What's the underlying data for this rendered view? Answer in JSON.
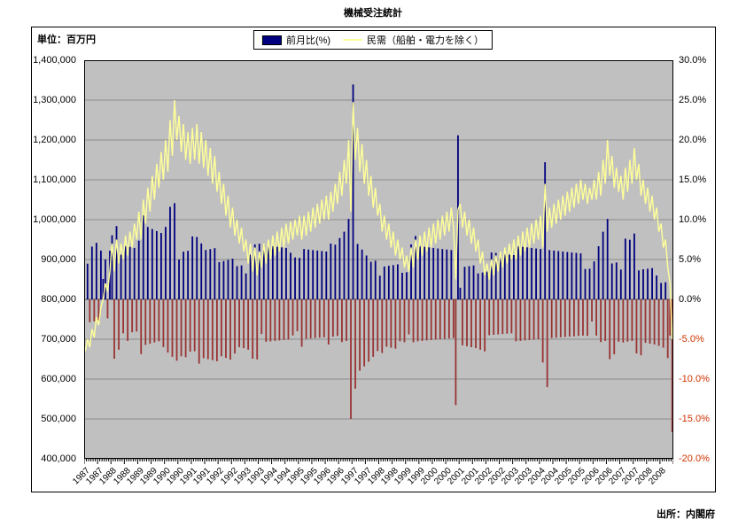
{
  "page": {
    "title": "機械受注統計",
    "unit_label": "単位：百万円",
    "source": "出所：内閣府"
  },
  "legend": {
    "items": [
      {
        "label": "前月比(%)",
        "type": "bar",
        "color": "#000080"
      },
      {
        "label": "民需（船舶・電力を除く）",
        "type": "line",
        "color": "#ffff99"
      }
    ]
  },
  "chart_data": {
    "type": "bar+line combo (monthly time series)",
    "title": "機械受注統計",
    "grid": true,
    "plot_bg": "#c0c0c0",
    "left_axis": {
      "label": "単位：百万円",
      "min": 400000,
      "max": 1400000,
      "step": 100000,
      "tick_labels": [
        "1,400,000",
        "1,300,000",
        "1,200,000",
        "1,100,000",
        "1,000,000",
        "900,000",
        "800,000",
        "700,000",
        "600,000",
        "500,000",
        "400,000"
      ]
    },
    "right_axis": {
      "min": -20,
      "max": 30,
      "step": 5,
      "tick_labels": [
        "30.0%",
        "25.0%",
        "20.0%",
        "15.0%",
        "10.0%",
        "5.0%",
        "0.0%",
        "-5.0%",
        "-10.0%",
        "-15.0%",
        "-20.0%"
      ],
      "negative_label_color": "#cc3300"
    },
    "x_axis": {
      "start_year": 1987,
      "start_month": 1,
      "months": 264,
      "tick_every_months": 6,
      "tick_labels": [
        "1987",
        "1987",
        "1988",
        "1988",
        "1989",
        "1989",
        "1990",
        "1990",
        "1991",
        "1991",
        "1992",
        "1992",
        "1993",
        "1993",
        "1994",
        "1994",
        "1995",
        "1995",
        "1996",
        "1996",
        "1997",
        "1997",
        "1998",
        "1998",
        "1999",
        "1999",
        "2000",
        "2000",
        "2001",
        "2001",
        "2002",
        "2002",
        "2003",
        "2003",
        "2004",
        "2004",
        "2005",
        "2005",
        "2006",
        "2006",
        "2007",
        "2007",
        "2008",
        "2008"
      ]
    },
    "series": [
      {
        "name": "民需（船舶・電力を除く）",
        "axis": "left",
        "type": "line",
        "color": "#ffff99",
        "unit": "百万円",
        "values": [
          670000,
          700000,
          680000,
          725000,
          705000,
          755000,
          735000,
          780000,
          800000,
          840000,
          820000,
          870000,
          940000,
          870000,
          950000,
          890000,
          940000,
          900000,
          960000,
          910000,
          970000,
          930000,
          990000,
          950000,
          1020000,
          950000,
          1050000,
          990000,
          1080000,
          1020000,
          1110000,
          1050000,
          1140000,
          1080000,
          1170000,
          1100000,
          1200000,
          1120000,
          1250000,
          1160000,
          1300000,
          1200000,
          1260000,
          1170000,
          1240000,
          1150000,
          1220000,
          1140000,
          1230000,
          1150000,
          1240000,
          1140000,
          1220000,
          1130000,
          1200000,
          1110000,
          1180000,
          1090000,
          1160000,
          1070000,
          1120000,
          1040000,
          1090000,
          1010000,
          1060000,
          980000,
          1030000,
          960000,
          1000000,
          940000,
          980000,
          920000,
          950000,
          890000,
          940000,
          870000,
          930000,
          860000,
          920000,
          880000,
          940000,
          890000,
          950000,
          900000,
          960000,
          910000,
          970000,
          920000,
          980000,
          930000,
          990000,
          940000,
          995000,
          950000,
          1000000,
          960000,
          1010000,
          950000,
          1010000,
          960000,
          1020000,
          970000,
          1030000,
          980000,
          1040000,
          990000,
          1050000,
          1000000,
          1060000,
          1000000,
          1070000,
          1020000,
          1090000,
          1040000,
          1120000,
          1060000,
          1150000,
          1090000,
          1200000,
          1020000,
          1295000,
          1150000,
          1230000,
          1120000,
          1190000,
          1090000,
          1150000,
          1060000,
          1110000,
          1030000,
          1080000,
          1010000,
          1040000,
          970000,
          1010000,
          950000,
          990000,
          930000,
          970000,
          910000,
          950000,
          900000,
          930000,
          880000,
          910000,
          870000,
          930000,
          880000,
          950000,
          900000,
          960000,
          910000,
          970000,
          920000,
          980000,
          930000,
          990000,
          940000,
          1000000,
          950000,
          1010000,
          960000,
          1020000,
          970000,
          1030000,
          980000,
          850000,
          1025000,
          1040000,
          980000,
          1020000,
          960000,
          1000000,
          940000,
          980000,
          920000,
          950000,
          890000,
          920000,
          860000,
          890000,
          850000,
          900000,
          860000,
          910000,
          870000,
          920000,
          880000,
          930000,
          890000,
          940000,
          900000,
          950000,
          900000,
          960000,
          910000,
          970000,
          920000,
          980000,
          930000,
          990000,
          940000,
          1000000,
          950000,
          1010000,
          930000,
          1090000,
          970000,
          1030000,
          980000,
          1040000,
          990000,
          1050000,
          1000000,
          1060000,
          1010000,
          1070000,
          1020000,
          1080000,
          1030000,
          1090000,
          1040000,
          1100000,
          1050000,
          1090000,
          1040000,
          1080000,
          1050000,
          1100000,
          1050000,
          1120000,
          1060000,
          1150000,
          1090000,
          1200000,
          1110000,
          1160000,
          1080000,
          1130000,
          1070000,
          1110000,
          1050000,
          1130000,
          1070000,
          1150000,
          1090000,
          1180000,
          1100000,
          1140000,
          1060000,
          1100000,
          1040000,
          1080000,
          1020000,
          1060000,
          1000000,
          1030000,
          970000,
          990000,
          930000,
          950000,
          880000,
          840000,
          700000
        ]
      },
      {
        "name": "前月比(%)",
        "axis": "right",
        "type": "bar",
        "color_positive": "#000080",
        "color_negative": "#993333",
        "derivation": "month-over-month % change of 民需（船舶・電力を除く） series: (v[i]-v[i-1])/v[i-1]*100"
      }
    ]
  }
}
